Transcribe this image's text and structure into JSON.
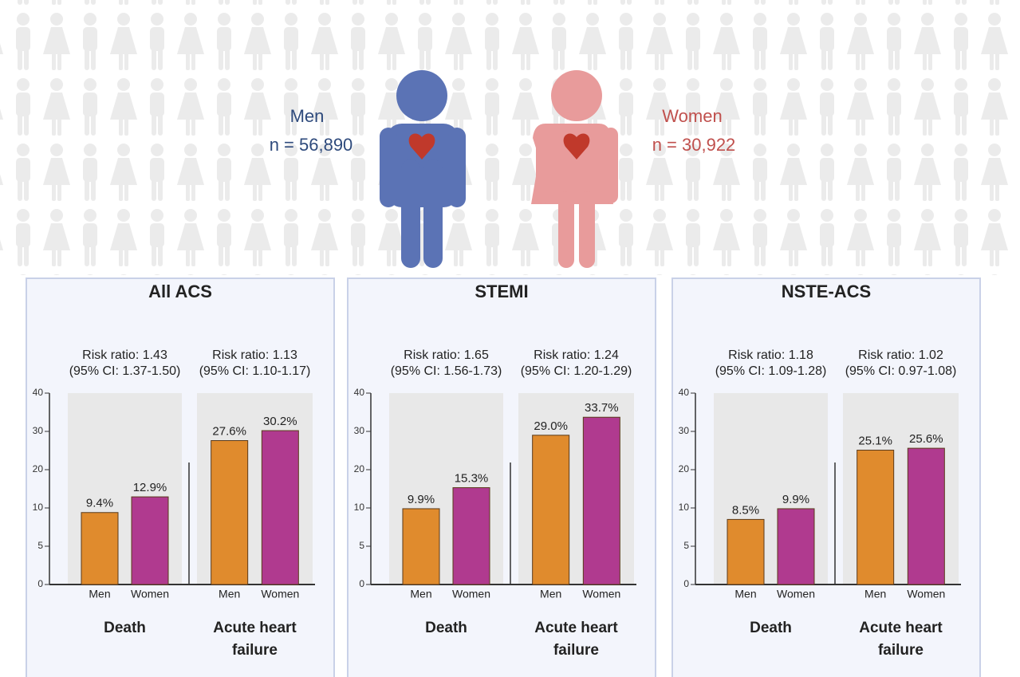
{
  "header": {
    "men": {
      "label": "Men",
      "n": "n = 56,890"
    },
    "women": {
      "label": "Women",
      "n": "n = 30,922"
    }
  },
  "chart_data": [
    {
      "type": "bar",
      "title": "All ACS",
      "categories": [
        "Death",
        "Acute heart failure"
      ],
      "annotations": [
        [
          "Risk ratio: 1.43",
          "(95% CI: 1.37-1.50)"
        ],
        [
          "Risk ratio: 1.13",
          "(95% CI: 1.10-1.17)"
        ]
      ],
      "series": [
        {
          "name": "Men",
          "color": "#e08b2d",
          "values": [
            9.4,
            27.6
          ],
          "value_labels": [
            "9.4%",
            "27.6%"
          ]
        },
        {
          "name": "Women",
          "color": "#b03a8f",
          "values": [
            12.9,
            30.2
          ],
          "value_labels": [
            "12.9%",
            "30.2%"
          ]
        }
      ],
      "ylim": [
        0,
        40
      ],
      "yticks": [
        0,
        5,
        10,
        20,
        30,
        40
      ]
    },
    {
      "type": "bar",
      "title": "STEMI",
      "categories": [
        "Death",
        "Acute heart failure"
      ],
      "annotations": [
        [
          "Risk ratio: 1.65",
          "(95% CI: 1.56-1.73)"
        ],
        [
          "Risk ratio: 1.24",
          "(95% CI: 1.20-1.29)"
        ]
      ],
      "series": [
        {
          "name": "Men",
          "color": "#e08b2d",
          "values": [
            9.9,
            29.0
          ],
          "value_labels": [
            "9.9%",
            "29.0%"
          ]
        },
        {
          "name": "Women",
          "color": "#b03a8f",
          "values": [
            15.3,
            33.7
          ],
          "value_labels": [
            "15.3%",
            "33.7%"
          ]
        }
      ],
      "ylim": [
        0,
        40
      ],
      "yticks": [
        0,
        5,
        10,
        20,
        30,
        40
      ]
    },
    {
      "type": "bar",
      "title": "NSTE-ACS",
      "categories": [
        "Death",
        "Acute heart failure"
      ],
      "annotations": [
        [
          "Risk ratio: 1.18",
          "(95% CI: 1.09-1.28)"
        ],
        [
          "Risk ratio: 1.02",
          "(95% CI: 0.97-1.08)"
        ]
      ],
      "series": [
        {
          "name": "Men",
          "color": "#e08b2d",
          "values": [
            8.5,
            25.1
          ],
          "value_labels": [
            "8.5%",
            "25.1%"
          ]
        },
        {
          "name": "Women",
          "color": "#b03a8f",
          "values": [
            9.9,
            25.6
          ],
          "value_labels": [
            "9.9%",
            "25.6%"
          ]
        }
      ],
      "ylim": [
        0,
        40
      ],
      "yticks": [
        0,
        5,
        10,
        20,
        30,
        40
      ]
    }
  ]
}
